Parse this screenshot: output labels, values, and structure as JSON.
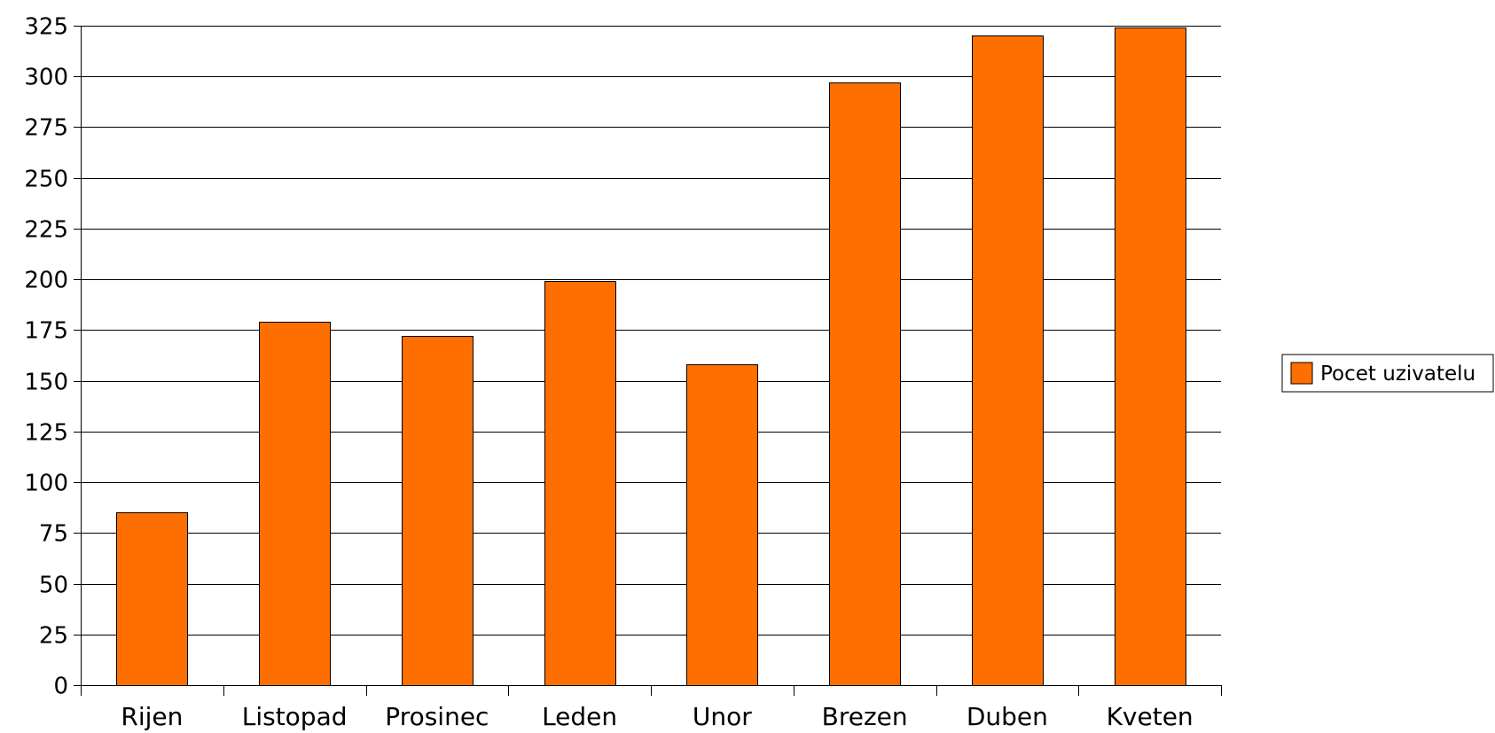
{
  "chart_data": {
    "type": "bar",
    "categories": [
      "Rijen",
      "Listopad",
      "Prosinec",
      "Leden",
      "Unor",
      "Brezen",
      "Duben",
      "Kveten"
    ],
    "series": [
      {
        "name": "Pocet uzivatelu",
        "values": [
          85,
          179,
          172,
          199,
          158,
          297,
          320,
          324
        ],
        "color": "#ff6f00"
      }
    ],
    "ylim": [
      0,
      325
    ],
    "y_ticks": [
      0,
      25,
      50,
      75,
      100,
      125,
      150,
      175,
      200,
      225,
      250,
      275,
      300,
      325
    ],
    "grid": true,
    "legend_position": "right",
    "legend_label": "Pocet uzivatelu"
  }
}
